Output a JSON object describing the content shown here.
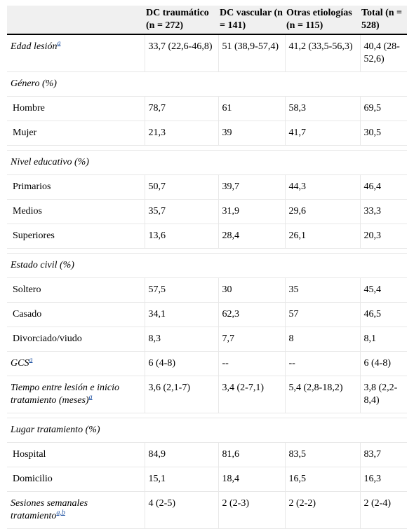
{
  "table": {
    "headers": [
      "",
      "DC traumático (n = 272)",
      "DC vascular (n = 141)",
      "Otras etiologías (n = 115)",
      "Total (n = 528)"
    ],
    "rows": {
      "edad": {
        "label": "Edad lesión",
        "sup": "a",
        "values": [
          "33,7 (22,6-46,8)",
          "51 (38,9-57,4)",
          "41,2 (33,5-56,3)",
          "40,4 (28-52,6)"
        ]
      },
      "genero": {
        "label": "Género (%)"
      },
      "hombre": {
        "label": "Hombre",
        "values": [
          "78,7",
          "61",
          "58,3",
          "69,5"
        ]
      },
      "mujer": {
        "label": "Mujer",
        "values": [
          "21,3",
          "39",
          "41,7",
          "30,5"
        ]
      },
      "nivel": {
        "label": "Nivel educativo (%)"
      },
      "primarios": {
        "label": "Primarios",
        "values": [
          "50,7",
          "39,7",
          "44,3",
          "46,4"
        ]
      },
      "medios": {
        "label": "Medios",
        "values": [
          "35,7",
          "31,9",
          "29,6",
          "33,3"
        ]
      },
      "superiores": {
        "label": "Superiores",
        "values": [
          "13,6",
          "28,4",
          "26,1",
          "20,3"
        ]
      },
      "civil": {
        "label": "Estado civil (%)"
      },
      "soltero": {
        "label": "Soltero",
        "values": [
          "57,5",
          "30",
          "35",
          "45,4"
        ]
      },
      "casado": {
        "label": "Casado",
        "values": [
          "34,1",
          "62,3",
          "57",
          "46,5"
        ]
      },
      "divorciado": {
        "label": "Divorciado/viudo",
        "values": [
          "8,3",
          "7,7",
          "8",
          "8,1"
        ]
      },
      "gcs": {
        "label": "GCS",
        "sup": "a",
        "values": [
          "6 (4-8)",
          "--",
          "--",
          "6 (4-8)"
        ]
      },
      "tiempo": {
        "label": "Tiempo entre lesión e inicio tratamiento (meses)",
        "sup": "a",
        "values": [
          "3,6 (2,1-7)",
          "3,4 (2-7,1)",
          "5,4 (2,8-18,2)",
          "3,8 (2,2-8,4)"
        ]
      },
      "lugar": {
        "label": "Lugar tratamiento (%)"
      },
      "hospital": {
        "label": "Hospital",
        "values": [
          "84,9",
          "81,6",
          "83,5",
          "83,7"
        ]
      },
      "domicilio": {
        "label": "Domicilio",
        "values": [
          "15,1",
          "18,4",
          "16,5",
          "16,3"
        ]
      },
      "sesiones": {
        "label": "Sesiones semanales tratamiento",
        "sup": "a,b",
        "values": [
          "4 (2-5)",
          "2 (2-3)",
          "2 (2-2)",
          "2 (2-4)"
        ]
      }
    }
  }
}
